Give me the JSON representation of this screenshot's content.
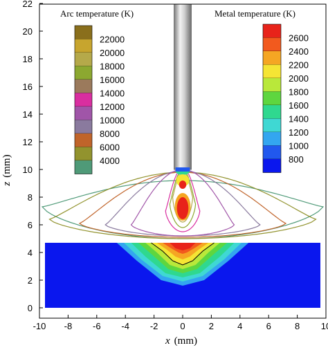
{
  "chart_data": {
    "type": "heatmap",
    "title": "",
    "xlabel_var": "x",
    "xlabel_unit": "(mm)",
    "ylabel_var": "z",
    "ylabel_unit": "(mm)",
    "xlim": [
      -10,
      10
    ],
    "ylim": [
      -0.3,
      22
    ],
    "x_ticks": [
      -10,
      -8,
      -6,
      -4,
      -2,
      0,
      2,
      4,
      6,
      8,
      10
    ],
    "y_ticks": [
      0,
      2,
      4,
      6,
      8,
      10,
      12,
      14,
      16,
      18,
      20,
      22
    ],
    "grid": false,
    "arc_legend": {
      "title": "Arc temperature (K)",
      "placement": "top-left",
      "levels": [
        {
          "value": "22000",
          "color": "#8a6f1c"
        },
        {
          "value": "20000",
          "color": "#c7a52e"
        },
        {
          "value": "18000",
          "color": "#b5a94a"
        },
        {
          "value": "16000",
          "color": "#8ca830"
        },
        {
          "value": "14000",
          "color": "#9b7a5c"
        },
        {
          "value": "12000",
          "color": "#d92ea0"
        },
        {
          "value": "10000",
          "color": "#a055a8"
        },
        {
          "value": "8000",
          "color": "#8a7a9e"
        },
        {
          "value": "6000",
          "color": "#c0642a"
        },
        {
          "value": "4000",
          "color": "#92932e"
        },
        {
          "value": "",
          "color": "#4f9a78"
        }
      ]
    },
    "metal_legend": {
      "title": "Metal temperature (K)",
      "placement": "top-right",
      "levels": [
        {
          "value": "2600",
          "color": "#e8231a"
        },
        {
          "value": "2400",
          "color": "#f25a1e"
        },
        {
          "value": "2200",
          "color": "#f5a623"
        },
        {
          "value": "2000",
          "color": "#f5e534"
        },
        {
          "value": "1800",
          "color": "#b9e83a"
        },
        {
          "value": "1600",
          "color": "#5ed63f"
        },
        {
          "value": "1400",
          "color": "#2fd88f"
        },
        {
          "value": "1200",
          "color": "#3fd8d3"
        },
        {
          "value": "1000",
          "color": "#33a6f0"
        },
        {
          "value": "800",
          "color": "#2158ee"
        },
        {
          "value": "",
          "color": "#0a17ee"
        }
      ]
    },
    "workpiece": {
      "x": [
        -10,
        10
      ],
      "z": [
        0,
        4.7
      ],
      "color": "#0a17ee"
    },
    "electrode": {
      "x": [
        -0.6,
        0.6
      ],
      "z_bottom": 10,
      "z_top": 22
    },
    "weld_pool": [
      {
        "temp": 1000,
        "color": "#33a6f0",
        "points": [
          [
            -4.6,
            4.7
          ],
          [
            -3.2,
            3.4
          ],
          [
            -1.5,
            2.0
          ],
          [
            0,
            1.6
          ],
          [
            1.5,
            2.0
          ],
          [
            3.2,
            3.4
          ],
          [
            4.6,
            4.7
          ]
        ]
      },
      {
        "temp": 1200,
        "color": "#3fd8d3",
        "points": [
          [
            -4.1,
            4.7
          ],
          [
            -2.9,
            3.5
          ],
          [
            -1.4,
            2.3
          ],
          [
            0,
            1.9
          ],
          [
            1.4,
            2.3
          ],
          [
            2.9,
            3.5
          ],
          [
            4.1,
            4.7
          ]
        ]
      },
      {
        "temp": 1400,
        "color": "#2fd88f",
        "points": [
          [
            -3.6,
            4.7
          ],
          [
            -2.6,
            3.7
          ],
          [
            -1.2,
            2.5
          ],
          [
            0,
            2.2
          ],
          [
            1.2,
            2.5
          ],
          [
            2.6,
            3.7
          ],
          [
            3.6,
            4.7
          ]
        ]
      },
      {
        "temp": 1600,
        "color": "#5ed63f",
        "points": [
          [
            -3.1,
            4.7
          ],
          [
            -2.2,
            3.9
          ],
          [
            -1.0,
            2.8
          ],
          [
            0,
            2.5
          ],
          [
            1.0,
            2.8
          ],
          [
            2.2,
            3.9
          ],
          [
            3.1,
            4.7
          ]
        ]
      },
      {
        "temp": 1800,
        "color": "#b9e83a",
        "points": [
          [
            -2.6,
            4.7
          ],
          [
            -1.8,
            4.0
          ],
          [
            -0.9,
            3.1
          ],
          [
            0,
            2.8
          ],
          [
            0.9,
            3.1
          ],
          [
            1.8,
            4.0
          ],
          [
            2.6,
            4.7
          ]
        ]
      },
      {
        "temp": 2000,
        "color": "#f5e534",
        "points": [
          [
            -2.2,
            4.7
          ],
          [
            -1.4,
            4.1
          ],
          [
            -0.7,
            3.4
          ],
          [
            0,
            3.1
          ],
          [
            0.7,
            3.4
          ],
          [
            1.4,
            4.1
          ],
          [
            2.2,
            4.7
          ]
        ]
      },
      {
        "temp": 2200,
        "color": "#f5a623",
        "points": [
          [
            -1.8,
            4.7
          ],
          [
            -1.1,
            4.2
          ],
          [
            -0.5,
            3.7
          ],
          [
            0,
            3.5
          ],
          [
            0.5,
            3.7
          ],
          [
            1.1,
            4.2
          ],
          [
            1.8,
            4.7
          ]
        ]
      },
      {
        "temp": 2400,
        "color": "#f25a1e",
        "points": [
          [
            -1.4,
            4.7
          ],
          [
            -0.8,
            4.3
          ],
          [
            -0.3,
            4.0
          ],
          [
            0,
            3.9
          ],
          [
            0.3,
            4.0
          ],
          [
            0.8,
            4.3
          ],
          [
            1.4,
            4.7
          ]
        ]
      },
      {
        "temp": 2600,
        "color": "#e8231a",
        "points": [
          [
            -0.9,
            4.7
          ],
          [
            -0.5,
            4.3
          ],
          [
            0,
            4.15
          ],
          [
            0.5,
            4.3
          ],
          [
            0.9,
            4.7
          ]
        ]
      }
    ],
    "arc_isotherms": [
      {
        "temp": 4000,
        "color": "#4f9a78",
        "halfwidth": 9.8,
        "z_edge": 7.3,
        "z_top": 9.2,
        "z_bottom": 5.0
      },
      {
        "temp": 6000,
        "color": "#92932e",
        "halfwidth": 9.3,
        "z_edge": 6.4,
        "z_top": 9.8,
        "z_bottom": 5.0
      },
      {
        "temp": 8000,
        "color": "#c0642a",
        "halfwidth": 7.2,
        "z_edge": 6.1,
        "z_top": 9.8,
        "z_bottom": 5.1
      },
      {
        "temp": 10000,
        "color": "#8a7a9e",
        "halfwidth": 5.4,
        "z_edge": 6.0,
        "z_top": 9.9,
        "z_bottom": 5.2
      },
      {
        "temp": 12000,
        "color": "#a055a8",
        "halfwidth": 3.6,
        "z_edge": 6.0,
        "z_top": 10.0,
        "z_bottom": 5.2
      },
      {
        "temp": 14000,
        "color": "#d92ea0",
        "halfwidth": 1.2,
        "z_edge": 7.0,
        "z_top": 10.1,
        "z_bottom": 5.5
      },
      {
        "temp": 16000,
        "color": "#8ca830",
        "halfwidth": 0.9,
        "z_edge": 7.5,
        "z_top": 10.0,
        "z_bottom": 5.8
      },
      {
        "temp": 18000,
        "color": "#b5a94a",
        "halfwidth": 0.7,
        "z_edge": 8.0,
        "z_top": 9.9,
        "z_bottom": 6.2
      }
    ],
    "arc_core": [
      {
        "color": "#2fd88f",
        "cx": 0,
        "cz": 9.9,
        "rx": 0.5,
        "rz": 0.3
      },
      {
        "color": "#f5e534",
        "cx": 0,
        "cz": 9.2,
        "rx": 0.45,
        "rz": 0.45
      },
      {
        "color": "#e8231a",
        "cx": 0,
        "cz": 8.9,
        "rx": 0.25,
        "rz": 0.3
      },
      {
        "color": "#f5a623",
        "cx": 0,
        "cz": 7.3,
        "rx": 0.55,
        "rz": 1.0
      },
      {
        "color": "#e8231a",
        "cx": 0,
        "cz": 7.2,
        "rx": 0.4,
        "rz": 0.8
      }
    ]
  }
}
